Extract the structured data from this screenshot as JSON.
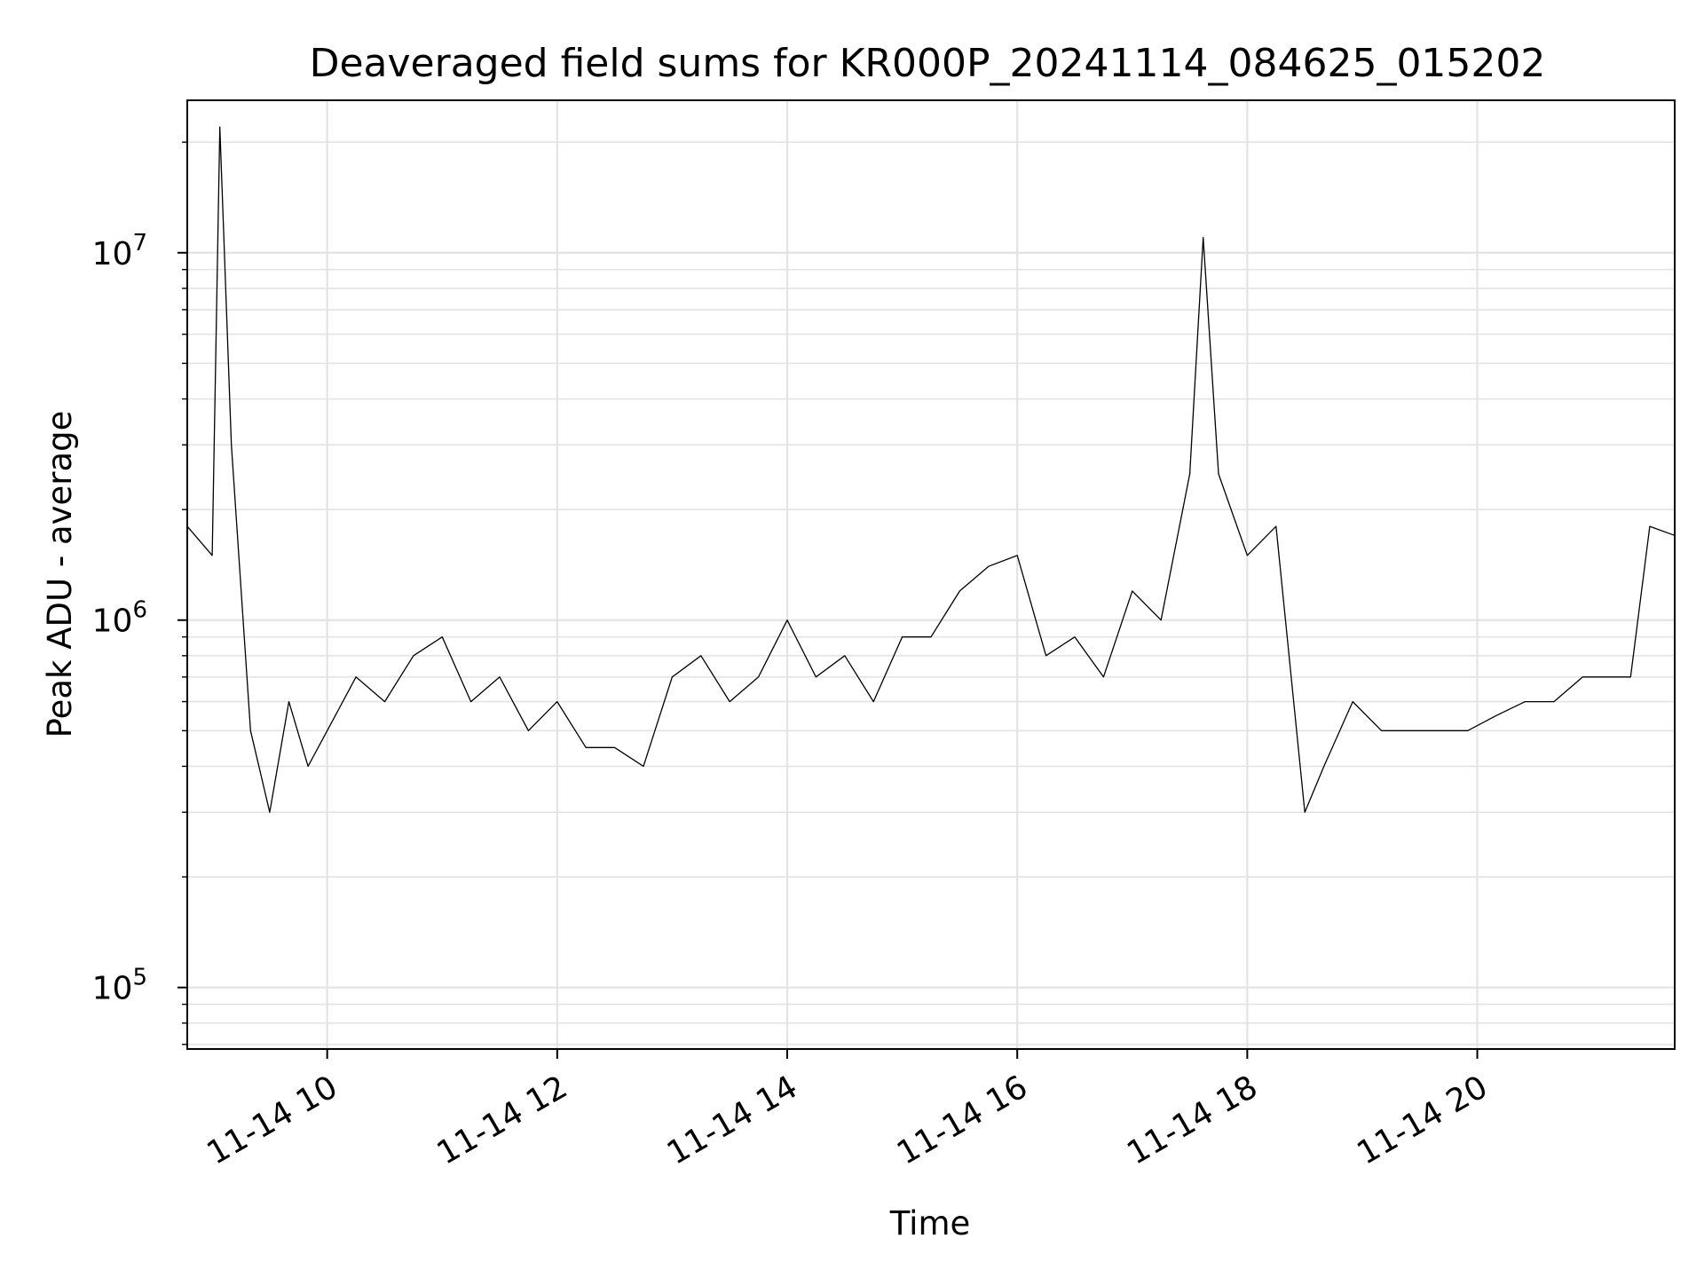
{
  "chart_data": {
    "type": "line",
    "title": "Deaveraged field sums for KR000P_20241114_084625_015202",
    "xlabel": "Time",
    "ylabel": "Peak ADU - average",
    "yscale": "log",
    "xlim": [
      "11-14 08:47",
      "11-14 21:43"
    ],
    "ylim": [
      68000,
      26000000
    ],
    "grid": true,
    "line_color": "#000000",
    "grid_color": "#e3e3e3",
    "x_ticks": [
      {
        "time": "11-14 10:00",
        "label": "11-14 10"
      },
      {
        "time": "11-14 12:00",
        "label": "11-14 12"
      },
      {
        "time": "11-14 14:00",
        "label": "11-14 14"
      },
      {
        "time": "11-14 16:00",
        "label": "11-14 16"
      },
      {
        "time": "11-14 18:00",
        "label": "11-14 18"
      },
      {
        "time": "11-14 20:00",
        "label": "11-14 20"
      }
    ],
    "y_ticks": [
      {
        "value": 100000,
        "base": "10",
        "exp": "5"
      },
      {
        "value": 1000000,
        "base": "10",
        "exp": "6"
      },
      {
        "value": 10000000,
        "base": "10",
        "exp": "7"
      }
    ],
    "series": [
      {
        "x": [
          "11-14 08:47",
          "11-14 09:00",
          "11-14 09:04",
          "11-14 09:10",
          "11-14 09:20",
          "11-14 09:30",
          "11-14 09:40",
          "11-14 09:50",
          "11-14 10:00",
          "11-14 10:15",
          "11-14 10:30",
          "11-14 10:45",
          "11-14 11:00",
          "11-14 11:15",
          "11-14 11:30",
          "11-14 11:45",
          "11-14 12:00",
          "11-14 12:15",
          "11-14 12:30",
          "11-14 12:45",
          "11-14 13:00",
          "11-14 13:15",
          "11-14 13:30",
          "11-14 13:45",
          "11-14 14:00",
          "11-14 14:15",
          "11-14 14:30",
          "11-14 14:45",
          "11-14 15:00",
          "11-14 15:15",
          "11-14 15:30",
          "11-14 15:45",
          "11-14 16:00",
          "11-14 16:15",
          "11-14 16:30",
          "11-14 16:45",
          "11-14 17:00",
          "11-14 17:15",
          "11-14 17:30",
          "11-14 17:37",
          "11-14 17:45",
          "11-14 18:00",
          "11-14 18:15",
          "11-14 18:30",
          "11-14 18:40",
          "11-14 18:55",
          "11-14 19:10",
          "11-14 19:25",
          "11-14 19:40",
          "11-14 19:55",
          "11-14 20:10",
          "11-14 20:25",
          "11-14 20:40",
          "11-14 20:55",
          "11-14 21:10",
          "11-14 21:20",
          "11-14 21:30",
          "11-14 21:43"
        ],
        "y": [
          1800000,
          1500000,
          22000000,
          3000000,
          500000,
          300000,
          600000,
          400000,
          500000,
          700000,
          600000,
          800000,
          900000,
          600000,
          700000,
          500000,
          600000,
          450000,
          450000,
          400000,
          700000,
          800000,
          600000,
          700000,
          1000000,
          700000,
          800000,
          600000,
          900000,
          900000,
          1200000,
          1400000,
          1500000,
          800000,
          900000,
          700000,
          1200000,
          1000000,
          2500000,
          11000000,
          2500000,
          1500000,
          1800000,
          300000,
          400000,
          600000,
          500000,
          500000,
          500000,
          500000,
          550000,
          600000,
          600000,
          700000,
          700000,
          700000,
          1800000,
          1700000
        ]
      }
    ]
  }
}
